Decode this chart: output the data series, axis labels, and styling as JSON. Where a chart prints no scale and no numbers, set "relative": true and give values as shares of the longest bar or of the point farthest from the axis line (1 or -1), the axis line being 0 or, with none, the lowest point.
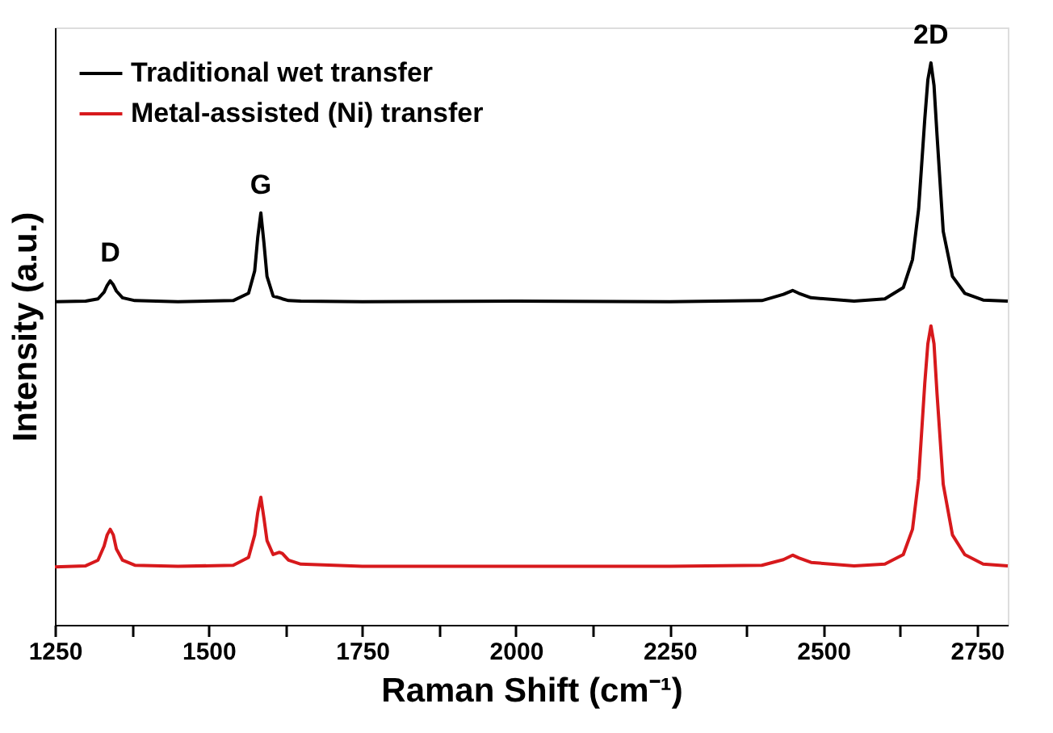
{
  "chart_data": {
    "type": "line",
    "relative": true,
    "xlabel": "Raman Shift (cm⁻¹)",
    "ylabel": "Intensity (a.u.)",
    "xlim": [
      1250,
      2800
    ],
    "xticks": [
      1250,
      {
        "value": 1375,
        "label": null
      },
      1500,
      {
        "value": 1625,
        "label": null
      },
      1750,
      {
        "value": 1875,
        "label": null
      },
      2000,
      {
        "value": 2125,
        "label": null
      },
      2250,
      {
        "value": 2375,
        "label": null
      },
      2500,
      {
        "value": 2625,
        "label": null
      },
      2750
    ],
    "x": [
      1250,
      1300,
      1320,
      1330,
      1335,
      1340,
      1345,
      1350,
      1360,
      1380,
      1450,
      1540,
      1565,
      1575,
      1580,
      1585,
      1590,
      1595,
      1605,
      1615,
      1620,
      1630,
      1650,
      1750,
      2000,
      2250,
      2400,
      2435,
      2450,
      2460,
      2480,
      2550,
      2600,
      2630,
      2645,
      2655,
      2665,
      2670,
      2675,
      2680,
      2685,
      2695,
      2710,
      2730,
      2760,
      2800
    ],
    "series": [
      {
        "name": "Traditional wet transfer",
        "color": "#000000",
        "values": [
          0.575,
          0.576,
          0.58,
          0.592,
          0.604,
          0.612,
          0.605,
          0.594,
          0.582,
          0.577,
          0.575,
          0.577,
          0.59,
          0.63,
          0.69,
          0.733,
          0.68,
          0.62,
          0.585,
          0.582,
          0.58,
          0.577,
          0.576,
          0.575,
          0.576,
          0.575,
          0.577,
          0.588,
          0.595,
          0.59,
          0.582,
          0.576,
          0.58,
          0.6,
          0.65,
          0.74,
          0.9,
          0.97,
          1.0,
          0.96,
          0.87,
          0.7,
          0.62,
          0.59,
          0.578,
          0.576
        ]
      },
      {
        "name": "Metal-assisted (Ni) transfer",
        "color": "#d7191c",
        "values": [
          0.103,
          0.105,
          0.115,
          0.14,
          0.16,
          0.17,
          0.16,
          0.135,
          0.115,
          0.106,
          0.104,
          0.106,
          0.12,
          0.16,
          0.2,
          0.227,
          0.19,
          0.15,
          0.125,
          0.129,
          0.127,
          0.115,
          0.108,
          0.104,
          0.104,
          0.104,
          0.106,
          0.116,
          0.124,
          0.119,
          0.111,
          0.105,
          0.108,
          0.125,
          0.17,
          0.26,
          0.43,
          0.5,
          0.532,
          0.5,
          0.41,
          0.25,
          0.16,
          0.125,
          0.108,
          0.105
        ]
      }
    ],
    "annotations": [
      {
        "text": "D",
        "x": 1340,
        "y": 0.612
      },
      {
        "text": "G",
        "x": 1585,
        "y": 0.733
      },
      {
        "text": "2D",
        "x": 2675,
        "y": 1.0
      }
    ],
    "legend": "top left",
    "grid": false,
    "marker": "none",
    "line_style": "solid"
  }
}
